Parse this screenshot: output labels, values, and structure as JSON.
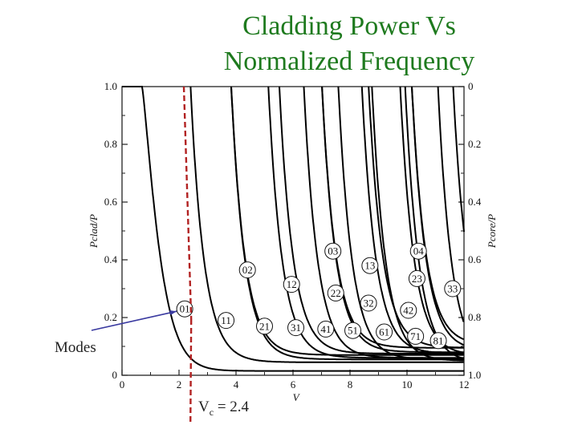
{
  "title_lines": [
    "Cladding Power Vs",
    "Normalized Frequency"
  ],
  "annotations": {
    "modes_label": "Modes",
    "vc_prefix": "V",
    "vc_sub": "c",
    "vc_value": " = 2.4"
  },
  "colors": {
    "title": "#1e7a1e",
    "curves": "#000000",
    "cutoff_line": "#b22222",
    "arrow": "#3a3aa0"
  },
  "chart_data": {
    "type": "line",
    "title": "Cladding Power Vs Normalized Frequency",
    "xlabel": "V",
    "ylabel": "Pclad/P",
    "y2label": "Pcore/P",
    "xlim": [
      0,
      12
    ],
    "ylim": [
      0,
      1.0
    ],
    "x_ticks": [
      "0",
      "2",
      "4",
      "6",
      "8",
      "10",
      "12"
    ],
    "y_ticks": [
      "0",
      "0.2",
      "0.4",
      "0.6",
      "0.8",
      "1.0"
    ],
    "y2_ticks": [
      "1.0",
      "0.8",
      "0.6",
      "0.4",
      "0.2",
      "0"
    ],
    "cutoff_line": {
      "x": 2.4,
      "label": "Vc = 2.4"
    },
    "series": [
      {
        "name": "01",
        "cutoff": 0.7,
        "end": 0.015,
        "label_x": 2.2,
        "label_y": 0.23
      },
      {
        "name": "11",
        "cutoff": 2.405,
        "end": 0.045,
        "label_x": 3.65,
        "label_y": 0.19
      },
      {
        "name": "21",
        "cutoff": 3.832,
        "end": 0.055,
        "label_x": 5.0,
        "label_y": 0.17
      },
      {
        "name": "02",
        "cutoff": 3.832,
        "end": 0.07,
        "label_x": 4.4,
        "label_y": 0.365
      },
      {
        "name": "31",
        "cutoff": 5.136,
        "end": 0.06,
        "label_x": 6.1,
        "label_y": 0.165
      },
      {
        "name": "12",
        "cutoff": 5.52,
        "end": 0.075,
        "label_x": 5.95,
        "label_y": 0.315
      },
      {
        "name": "41",
        "cutoff": 6.38,
        "end": 0.06,
        "label_x": 7.15,
        "label_y": 0.16
      },
      {
        "name": "22",
        "cutoff": 7.016,
        "end": 0.08,
        "label_x": 7.5,
        "label_y": 0.285
      },
      {
        "name": "03",
        "cutoff": 7.016,
        "end": 0.095,
        "label_x": 7.4,
        "label_y": 0.43
      },
      {
        "name": "51",
        "cutoff": 7.59,
        "end": 0.055,
        "label_x": 8.1,
        "label_y": 0.155
      },
      {
        "name": "32",
        "cutoff": 8.417,
        "end": 0.075,
        "label_x": 8.65,
        "label_y": 0.25
      },
      {
        "name": "13",
        "cutoff": 8.654,
        "end": 0.095,
        "label_x": 8.7,
        "label_y": 0.38
      },
      {
        "name": "61",
        "cutoff": 8.77,
        "end": 0.05,
        "label_x": 9.2,
        "label_y": 0.15
      },
      {
        "name": "42",
        "cutoff": 9.761,
        "end": 0.07,
        "label_x": 10.05,
        "label_y": 0.225
      },
      {
        "name": "71",
        "cutoff": 9.936,
        "end": 0.045,
        "label_x": 10.3,
        "label_y": 0.135
      },
      {
        "name": "23",
        "cutoff": 10.17,
        "end": 0.085,
        "label_x": 10.35,
        "label_y": 0.335
      },
      {
        "name": "04",
        "cutoff": 10.17,
        "end": 0.105,
        "label_x": 10.4,
        "label_y": 0.43
      },
      {
        "name": "81",
        "cutoff": 11.086,
        "end": 0.04,
        "label_x": 11.1,
        "label_y": 0.12
      },
      {
        "name": "33",
        "cutoff": 11.62,
        "end": 0.085,
        "label_x": 11.6,
        "label_y": 0.3
      }
    ]
  }
}
